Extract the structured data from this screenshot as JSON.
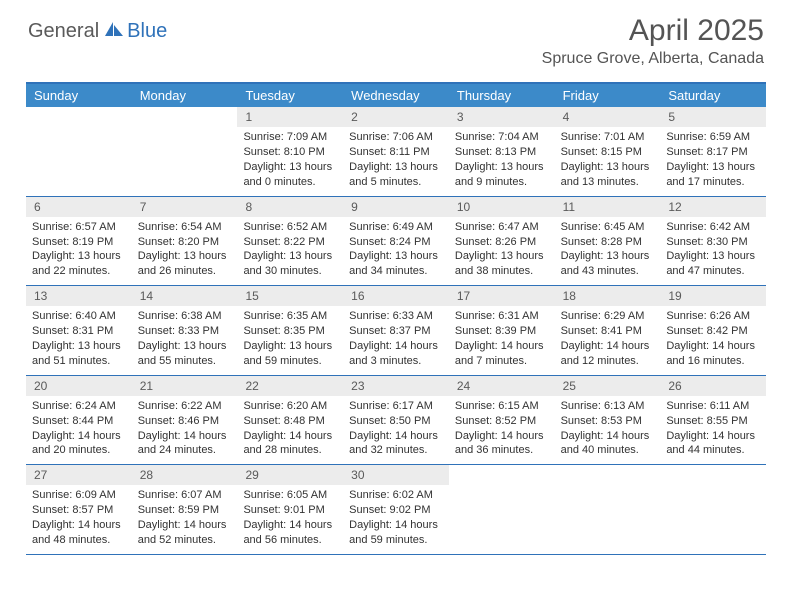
{
  "logo": {
    "general": "General",
    "blue": "Blue"
  },
  "page_title": "April 2025",
  "location": "Spruce Grove, Alberta, Canada",
  "colors": {
    "header_bar": "#3c8ac9",
    "header_border": "#2f72b9",
    "daynum_bg": "#ececec",
    "text": "#323232",
    "title_text": "#545454"
  },
  "days_of_week": [
    "Sunday",
    "Monday",
    "Tuesday",
    "Wednesday",
    "Thursday",
    "Friday",
    "Saturday"
  ],
  "weeks": [
    [
      null,
      null,
      {
        "n": "1",
        "sunrise": "Sunrise: 7:09 AM",
        "sunset": "Sunset: 8:10 PM",
        "daylight": "Daylight: 13 hours and 0 minutes."
      },
      {
        "n": "2",
        "sunrise": "Sunrise: 7:06 AM",
        "sunset": "Sunset: 8:11 PM",
        "daylight": "Daylight: 13 hours and 5 minutes."
      },
      {
        "n": "3",
        "sunrise": "Sunrise: 7:04 AM",
        "sunset": "Sunset: 8:13 PM",
        "daylight": "Daylight: 13 hours and 9 minutes."
      },
      {
        "n": "4",
        "sunrise": "Sunrise: 7:01 AM",
        "sunset": "Sunset: 8:15 PM",
        "daylight": "Daylight: 13 hours and 13 minutes."
      },
      {
        "n": "5",
        "sunrise": "Sunrise: 6:59 AM",
        "sunset": "Sunset: 8:17 PM",
        "daylight": "Daylight: 13 hours and 17 minutes."
      }
    ],
    [
      {
        "n": "6",
        "sunrise": "Sunrise: 6:57 AM",
        "sunset": "Sunset: 8:19 PM",
        "daylight": "Daylight: 13 hours and 22 minutes."
      },
      {
        "n": "7",
        "sunrise": "Sunrise: 6:54 AM",
        "sunset": "Sunset: 8:20 PM",
        "daylight": "Daylight: 13 hours and 26 minutes."
      },
      {
        "n": "8",
        "sunrise": "Sunrise: 6:52 AM",
        "sunset": "Sunset: 8:22 PM",
        "daylight": "Daylight: 13 hours and 30 minutes."
      },
      {
        "n": "9",
        "sunrise": "Sunrise: 6:49 AM",
        "sunset": "Sunset: 8:24 PM",
        "daylight": "Daylight: 13 hours and 34 minutes."
      },
      {
        "n": "10",
        "sunrise": "Sunrise: 6:47 AM",
        "sunset": "Sunset: 8:26 PM",
        "daylight": "Daylight: 13 hours and 38 minutes."
      },
      {
        "n": "11",
        "sunrise": "Sunrise: 6:45 AM",
        "sunset": "Sunset: 8:28 PM",
        "daylight": "Daylight: 13 hours and 43 minutes."
      },
      {
        "n": "12",
        "sunrise": "Sunrise: 6:42 AM",
        "sunset": "Sunset: 8:30 PM",
        "daylight": "Daylight: 13 hours and 47 minutes."
      }
    ],
    [
      {
        "n": "13",
        "sunrise": "Sunrise: 6:40 AM",
        "sunset": "Sunset: 8:31 PM",
        "daylight": "Daylight: 13 hours and 51 minutes."
      },
      {
        "n": "14",
        "sunrise": "Sunrise: 6:38 AM",
        "sunset": "Sunset: 8:33 PM",
        "daylight": "Daylight: 13 hours and 55 minutes."
      },
      {
        "n": "15",
        "sunrise": "Sunrise: 6:35 AM",
        "sunset": "Sunset: 8:35 PM",
        "daylight": "Daylight: 13 hours and 59 minutes."
      },
      {
        "n": "16",
        "sunrise": "Sunrise: 6:33 AM",
        "sunset": "Sunset: 8:37 PM",
        "daylight": "Daylight: 14 hours and 3 minutes."
      },
      {
        "n": "17",
        "sunrise": "Sunrise: 6:31 AM",
        "sunset": "Sunset: 8:39 PM",
        "daylight": "Daylight: 14 hours and 7 minutes."
      },
      {
        "n": "18",
        "sunrise": "Sunrise: 6:29 AM",
        "sunset": "Sunset: 8:41 PM",
        "daylight": "Daylight: 14 hours and 12 minutes."
      },
      {
        "n": "19",
        "sunrise": "Sunrise: 6:26 AM",
        "sunset": "Sunset: 8:42 PM",
        "daylight": "Daylight: 14 hours and 16 minutes."
      }
    ],
    [
      {
        "n": "20",
        "sunrise": "Sunrise: 6:24 AM",
        "sunset": "Sunset: 8:44 PM",
        "daylight": "Daylight: 14 hours and 20 minutes."
      },
      {
        "n": "21",
        "sunrise": "Sunrise: 6:22 AM",
        "sunset": "Sunset: 8:46 PM",
        "daylight": "Daylight: 14 hours and 24 minutes."
      },
      {
        "n": "22",
        "sunrise": "Sunrise: 6:20 AM",
        "sunset": "Sunset: 8:48 PM",
        "daylight": "Daylight: 14 hours and 28 minutes."
      },
      {
        "n": "23",
        "sunrise": "Sunrise: 6:17 AM",
        "sunset": "Sunset: 8:50 PM",
        "daylight": "Daylight: 14 hours and 32 minutes."
      },
      {
        "n": "24",
        "sunrise": "Sunrise: 6:15 AM",
        "sunset": "Sunset: 8:52 PM",
        "daylight": "Daylight: 14 hours and 36 minutes."
      },
      {
        "n": "25",
        "sunrise": "Sunrise: 6:13 AM",
        "sunset": "Sunset: 8:53 PM",
        "daylight": "Daylight: 14 hours and 40 minutes."
      },
      {
        "n": "26",
        "sunrise": "Sunrise: 6:11 AM",
        "sunset": "Sunset: 8:55 PM",
        "daylight": "Daylight: 14 hours and 44 minutes."
      }
    ],
    [
      {
        "n": "27",
        "sunrise": "Sunrise: 6:09 AM",
        "sunset": "Sunset: 8:57 PM",
        "daylight": "Daylight: 14 hours and 48 minutes."
      },
      {
        "n": "28",
        "sunrise": "Sunrise: 6:07 AM",
        "sunset": "Sunset: 8:59 PM",
        "daylight": "Daylight: 14 hours and 52 minutes."
      },
      {
        "n": "29",
        "sunrise": "Sunrise: 6:05 AM",
        "sunset": "Sunset: 9:01 PM",
        "daylight": "Daylight: 14 hours and 56 minutes."
      },
      {
        "n": "30",
        "sunrise": "Sunrise: 6:02 AM",
        "sunset": "Sunset: 9:02 PM",
        "daylight": "Daylight: 14 hours and 59 minutes."
      },
      null,
      null,
      null
    ]
  ]
}
